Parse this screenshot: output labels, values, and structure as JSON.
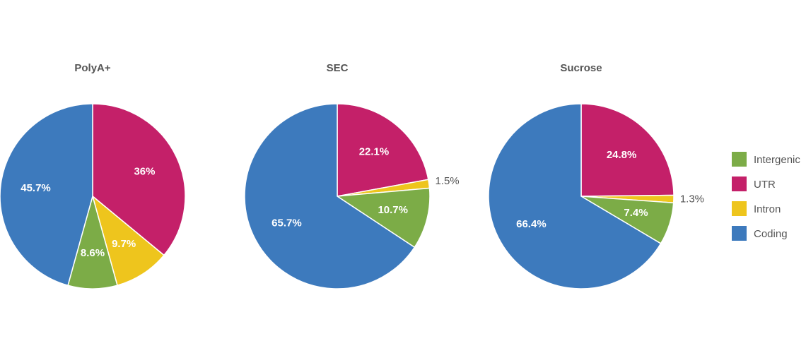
{
  "chart_data": [
    {
      "type": "pie",
      "title": "PolyA+",
      "categories": [
        "Intergenic",
        "UTR",
        "Intron",
        "Coding"
      ],
      "colors": [
        "#7cac47",
        "#c42069",
        "#eec51d",
        "#3d7abd"
      ],
      "values": [
        8.6,
        36,
        9.7,
        45.7
      ],
      "value_labels": [
        "8.6%",
        "36%",
        "9.7%",
        "45.7%"
      ]
    },
    {
      "type": "pie",
      "title": "SEC",
      "categories": [
        "Intergenic",
        "UTR",
        "Intron",
        "Coding"
      ],
      "colors": [
        "#7cac47",
        "#c42069",
        "#eec51d",
        "#3d7abd"
      ],
      "values": [
        10.7,
        22.1,
        1.5,
        65.7
      ],
      "value_labels": [
        "10.7%",
        "22.1%",
        "1.5%",
        "65.7%"
      ]
    },
    {
      "type": "pie",
      "title": "Sucrose",
      "categories": [
        "Intergenic",
        "UTR",
        "Intron",
        "Coding"
      ],
      "colors": [
        "#7cac47",
        "#c42069",
        "#eec51d",
        "#3d7abd"
      ],
      "values": [
        7.4,
        24.8,
        1.3,
        66.4
      ],
      "value_labels": [
        "7.4%",
        "24.8%",
        "1.3%",
        "66.4%"
      ]
    }
  ]
}
